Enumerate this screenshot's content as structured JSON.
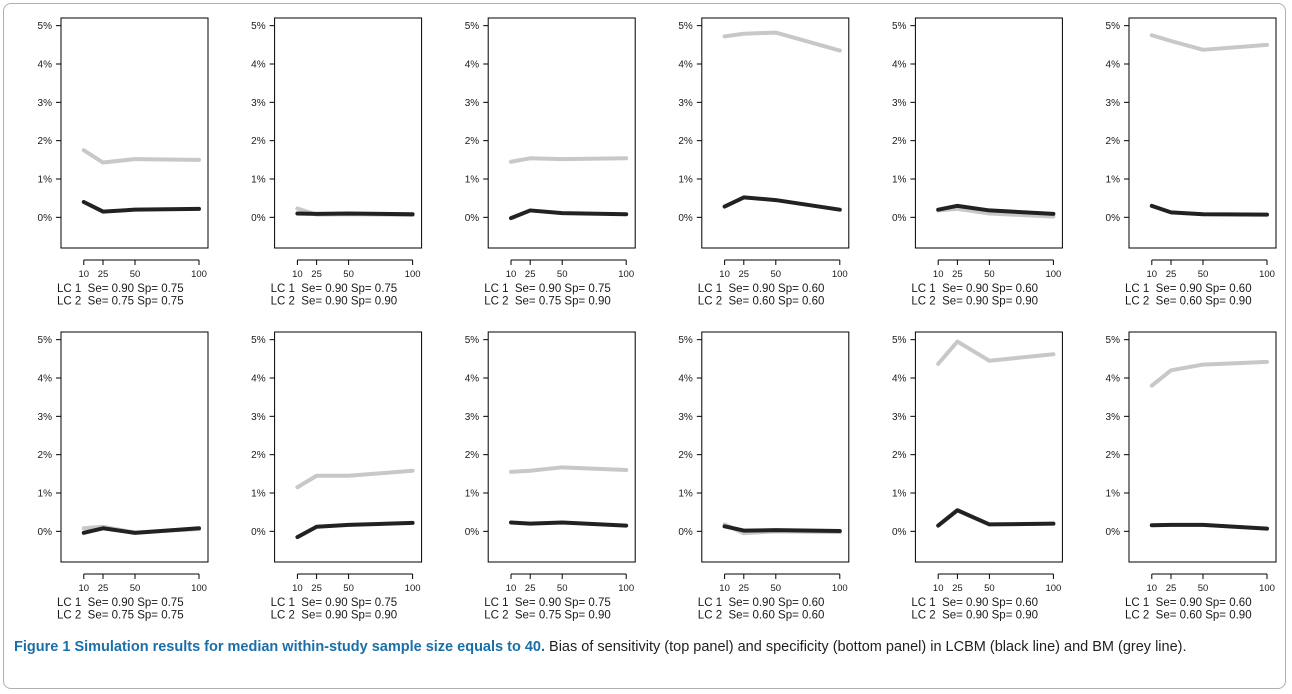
{
  "colors": {
    "lcbm": "#222222",
    "bm": "#c8c8c8",
    "axis": "#000000"
  },
  "caption": {
    "label": "Figure 1",
    "title": "Simulation results for median within-study sample size equals to 40.",
    "text": "Bias of sensitivity (top panel) and specificity (bottom panel) in LCBM (black line) and BM (grey line)."
  },
  "chart_data": [
    {
      "type": "line",
      "x": [
        10,
        25,
        50,
        100
      ],
      "xticks": [
        "10",
        "25",
        "50",
        "100"
      ],
      "yticks": [
        "5%",
        "4%",
        "3%",
        "2%",
        "1%",
        "0%"
      ],
      "ylim": [
        -0.008,
        0.052
      ],
      "series": [
        {
          "values": [
            0.004,
            0.0015,
            0.002,
            0.0022
          ]
        },
        {
          "values": [
            0.0175,
            0.0143,
            0.0152,
            0.015
          ]
        }
      ],
      "label_lines": [
        "LC 1  Se= 0.90 Sp= 0.75",
        "LC 2  Se= 0.75 Sp= 0.75"
      ]
    },
    {
      "type": "line",
      "x": [
        10,
        25,
        50,
        100
      ],
      "xticks": [
        "10",
        "25",
        "50",
        "100"
      ],
      "yticks": [
        "5%",
        "4%",
        "3%",
        "2%",
        "1%",
        "0%"
      ],
      "ylim": [
        -0.008,
        0.052
      ],
      "series": [
        {
          "values": [
            0.001,
            0.0009,
            0.001,
            0.0008
          ]
        },
        {
          "values": [
            0.0023,
            0.0007,
            0.0008,
            0.0006
          ]
        }
      ],
      "label_lines": [
        "LC 1  Se= 0.90 Sp= 0.75",
        "LC 2  Se= 0.90 Sp= 0.90"
      ]
    },
    {
      "type": "line",
      "x": [
        10,
        25,
        50,
        100
      ],
      "xticks": [
        "10",
        "25",
        "50",
        "100"
      ],
      "yticks": [
        "5%",
        "4%",
        "3%",
        "2%",
        "1%",
        "0%"
      ],
      "ylim": [
        -0.008,
        0.052
      ],
      "series": [
        {
          "values": [
            -0.0002,
            0.0018,
            0.0011,
            0.0008
          ]
        },
        {
          "values": [
            0.0145,
            0.0154,
            0.0152,
            0.0154
          ]
        }
      ],
      "label_lines": [
        "LC 1  Se= 0.90 Sp= 0.75",
        "LC 2  Se= 0.75 Sp= 0.90"
      ]
    },
    {
      "type": "line",
      "x": [
        10,
        25,
        50,
        100
      ],
      "xticks": [
        "10",
        "25",
        "50",
        "100"
      ],
      "yticks": [
        "5%",
        "4%",
        "3%",
        "2%",
        "1%",
        "0%"
      ],
      "ylim": [
        -0.008,
        0.052
      ],
      "series": [
        {
          "values": [
            0.0028,
            0.0052,
            0.0045,
            0.002
          ]
        },
        {
          "values": [
            0.0472,
            0.0479,
            0.0482,
            0.0435
          ]
        }
      ],
      "label_lines": [
        "LC 1  Se= 0.90 Sp= 0.60",
        "LC 2  Se= 0.60 Sp= 0.60"
      ]
    },
    {
      "type": "line",
      "x": [
        10,
        25,
        50,
        100
      ],
      "xticks": [
        "10",
        "25",
        "50",
        "100"
      ],
      "yticks": [
        "5%",
        "4%",
        "3%",
        "2%",
        "1%",
        "0%"
      ],
      "ylim": [
        -0.008,
        0.052
      ],
      "series": [
        {
          "values": [
            0.002,
            0.003,
            0.0018,
            0.0009
          ]
        },
        {
          "values": [
            0.0018,
            0.0022,
            0.001,
            0.0002
          ]
        }
      ],
      "label_lines": [
        "LC 1  Se= 0.90 Sp= 0.60",
        "LC 2  Se= 0.90 Sp= 0.90"
      ]
    },
    {
      "type": "line",
      "x": [
        10,
        25,
        50,
        100
      ],
      "xticks": [
        "10",
        "25",
        "50",
        "100"
      ],
      "yticks": [
        "5%",
        "4%",
        "3%",
        "2%",
        "1%",
        "0%"
      ],
      "ylim": [
        -0.008,
        0.052
      ],
      "series": [
        {
          "values": [
            0.003,
            0.0013,
            0.0008,
            0.0007
          ]
        },
        {
          "values": [
            0.0475,
            0.046,
            0.0437,
            0.045
          ]
        }
      ],
      "label_lines": [
        "LC 1  Se= 0.90 Sp= 0.60",
        "LC 2  Se= 0.60 Sp= 0.90"
      ]
    },
    {
      "type": "line",
      "x": [
        10,
        25,
        50,
        100
      ],
      "xticks": [
        "10",
        "25",
        "50",
        "100"
      ],
      "yticks": [
        "5%",
        "4%",
        "3%",
        "2%",
        "1%",
        "0%"
      ],
      "ylim": [
        -0.008,
        0.052
      ],
      "series": [
        {
          "values": [
            -0.0004,
            0.0008,
            -0.0004,
            0.0008
          ]
        },
        {
          "values": [
            0.0008,
            0.0012,
            -0.0003,
            0.0006
          ]
        }
      ],
      "label_lines": [
        "LC 1  Se= 0.90 Sp= 0.75",
        "LC 2  Se= 0.75 Sp= 0.75"
      ]
    },
    {
      "type": "line",
      "x": [
        10,
        25,
        50,
        100
      ],
      "xticks": [
        "10",
        "25",
        "50",
        "100"
      ],
      "yticks": [
        "5%",
        "4%",
        "3%",
        "2%",
        "1%",
        "0%"
      ],
      "ylim": [
        -0.008,
        0.052
      ],
      "series": [
        {
          "values": [
            -0.0015,
            0.0012,
            0.0017,
            0.0022
          ]
        },
        {
          "values": [
            0.0115,
            0.0145,
            0.0145,
            0.0158
          ]
        }
      ],
      "label_lines": [
        "LC 1  Se= 0.90 Sp= 0.75",
        "LC 2  Se= 0.90 Sp= 0.90"
      ]
    },
    {
      "type": "line",
      "x": [
        10,
        25,
        50,
        100
      ],
      "xticks": [
        "10",
        "25",
        "50",
        "100"
      ],
      "yticks": [
        "5%",
        "4%",
        "3%",
        "2%",
        "1%",
        "0%"
      ],
      "ylim": [
        -0.008,
        0.052
      ],
      "series": [
        {
          "values": [
            0.0023,
            0.002,
            0.0023,
            0.0015
          ]
        },
        {
          "values": [
            0.0155,
            0.0158,
            0.0167,
            0.016
          ]
        }
      ],
      "label_lines": [
        "LC 1  Se= 0.90 Sp= 0.75",
        "LC 2  Se= 0.75 Sp= 0.90"
      ]
    },
    {
      "type": "line",
      "x": [
        10,
        25,
        50,
        100
      ],
      "xticks": [
        "10",
        "25",
        "50",
        "100"
      ],
      "yticks": [
        "5%",
        "4%",
        "3%",
        "2%",
        "1%",
        "0%"
      ],
      "ylim": [
        -0.008,
        0.052
      ],
      "series": [
        {
          "values": [
            0.0013,
            0.0002,
            0.0003,
            0.0001
          ]
        },
        {
          "values": [
            0.0018,
            -0.0005,
            0,
            -0.0002
          ]
        }
      ],
      "label_lines": [
        "LC 1  Se= 0.90 Sp= 0.60",
        "LC 2  Se= 0.60 Sp= 0.60"
      ]
    },
    {
      "type": "line",
      "x": [
        10,
        25,
        50,
        100
      ],
      "xticks": [
        "10",
        "25",
        "50",
        "100"
      ],
      "yticks": [
        "5%",
        "4%",
        "3%",
        "2%",
        "1%",
        "0%"
      ],
      "ylim": [
        -0.008,
        0.052
      ],
      "series": [
        {
          "values": [
            0.0015,
            0.0055,
            0.0018,
            0.002
          ]
        },
        {
          "values": [
            0.0437,
            0.0495,
            0.0445,
            0.0462
          ]
        }
      ],
      "label_lines": [
        "LC 1  Se= 0.90 Sp= 0.60",
        "LC 2  Se= 0.90 Sp= 0.90"
      ]
    },
    {
      "type": "line",
      "x": [
        10,
        25,
        50,
        100
      ],
      "xticks": [
        "10",
        "25",
        "50",
        "100"
      ],
      "yticks": [
        "5%",
        "4%",
        "3%",
        "2%",
        "1%",
        "0%"
      ],
      "ylim": [
        -0.008,
        0.052
      ],
      "series": [
        {
          "values": [
            0.0016,
            0.0017,
            0.0017,
            0.0007
          ]
        },
        {
          "values": [
            0.038,
            0.042,
            0.0435,
            0.0442
          ]
        }
      ],
      "label_lines": [
        "LC 1  Se= 0.90 Sp= 0.60",
        "LC 2  Se= 0.60 Sp= 0.90"
      ]
    }
  ]
}
